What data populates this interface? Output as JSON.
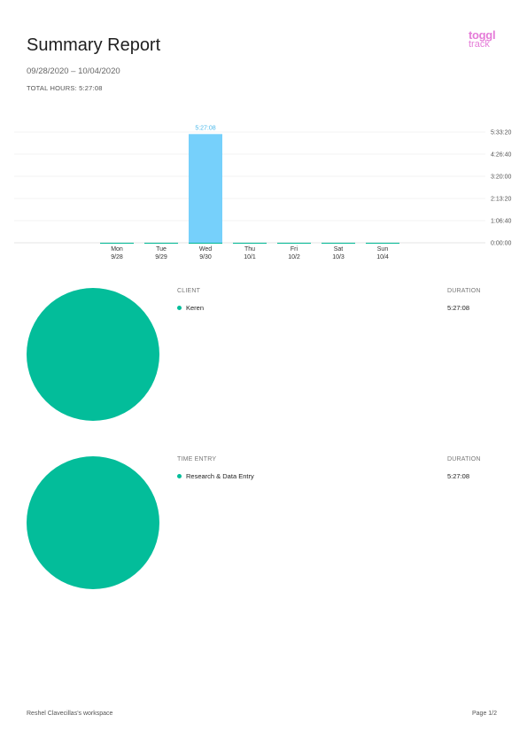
{
  "report": {
    "title": "Summary Report",
    "date_range": "09/28/2020 – 10/04/2020",
    "total_hours": "TOTAL HOURS: 5:27:08"
  },
  "logo": {
    "line1": "toggl",
    "line2": "track"
  },
  "colors": {
    "bar": "#76d0fb",
    "baseline": "#00b894",
    "pie": "#03bd9a",
    "value_label": "#4ab8ea"
  },
  "chart_data": {
    "type": "bar",
    "categories": [
      "Mon 9/28",
      "Tue 9/29",
      "Wed 9/30",
      "Thu 10/1",
      "Fri 10/2",
      "Sat 10/3",
      "Sun 10/4"
    ],
    "day_names": [
      "Mon",
      "Tue",
      "Wed",
      "Thu",
      "Fri",
      "Sat",
      "Sun"
    ],
    "day_dates": [
      "9/28",
      "9/29",
      "9/30",
      "10/1",
      "10/2",
      "10/3",
      "10/4"
    ],
    "values_seconds": [
      0,
      0,
      19628,
      0,
      0,
      0,
      0
    ],
    "data_labels": [
      "",
      "",
      "5:27:08",
      "",
      "",
      "",
      ""
    ],
    "y_ticks": [
      "0:00:00",
      "1:06:40",
      "2:13:20",
      "3:20:00",
      "4:26:40",
      "5:33:20"
    ],
    "ylim": [
      0,
      20000
    ],
    "tick_step": 4000,
    "grid": true
  },
  "client_section": {
    "header": "CLIENT",
    "duration_header": "DURATION",
    "rows": [
      {
        "label": "Keren",
        "duration": "5:27:08"
      }
    ]
  },
  "entry_section": {
    "header": "TIME ENTRY",
    "duration_header": "DURATION",
    "rows": [
      {
        "label": "Research & Data Entry",
        "duration": "5:27:08"
      }
    ]
  },
  "footer": {
    "workspace": "Reshel Clavecillas's workspace",
    "page": "Page 1/2"
  }
}
